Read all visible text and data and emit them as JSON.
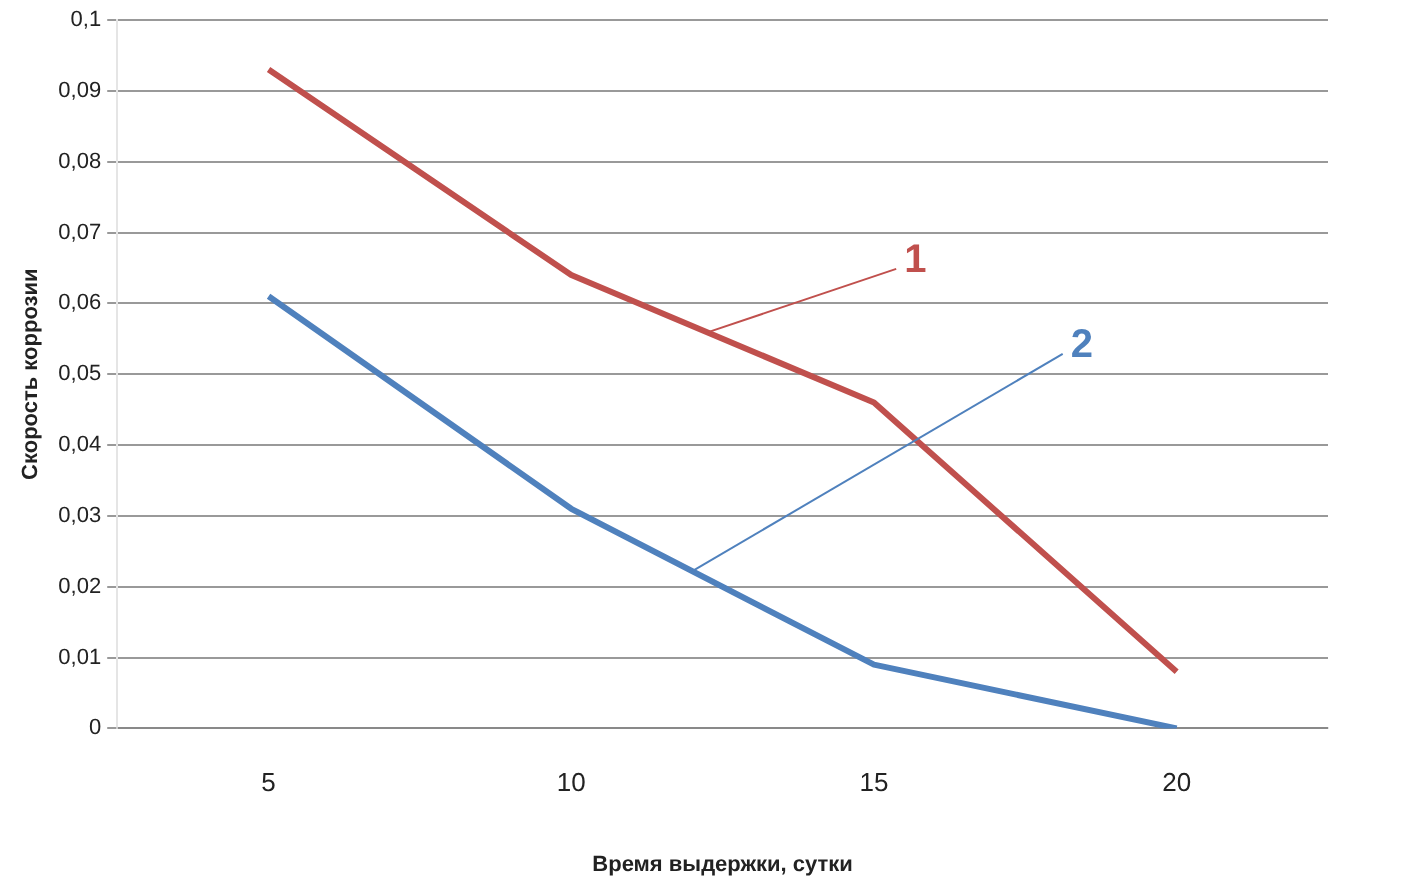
{
  "chart_data": {
    "type": "line",
    "xlabel": "Время выдержки, сутки",
    "ylabel": "Скорость коррозии",
    "categories": [
      "5",
      "10",
      "15",
      "20"
    ],
    "series": [
      {
        "name": "1",
        "color": "#c0504d",
        "values": [
          0.093,
          0.064,
          0.046,
          0.008
        ]
      },
      {
        "name": "2",
        "color": "#4f81bd",
        "values": [
          0.061,
          0.031,
          0.009,
          0.0
        ]
      }
    ],
    "ylim": [
      0,
      0.1
    ],
    "yticks": [
      {
        "value": 0,
        "label": "0"
      },
      {
        "value": 0.01,
        "label": "0,01"
      },
      {
        "value": 0.02,
        "label": "0,02"
      },
      {
        "value": 0.03,
        "label": "0,03"
      },
      {
        "value": 0.04,
        "label": "0,04"
      },
      {
        "value": 0.05,
        "label": "0,05"
      },
      {
        "value": 0.06,
        "label": "0,06"
      },
      {
        "value": 0.07,
        "label": "0,07"
      },
      {
        "value": 0.08,
        "label": "0,08"
      },
      {
        "value": 0.09,
        "label": "0,09"
      },
      {
        "value": 0.1,
        "label": "0,1"
      }
    ],
    "grid": "y",
    "legend": false,
    "marker": "none",
    "line_style": "solid"
  }
}
